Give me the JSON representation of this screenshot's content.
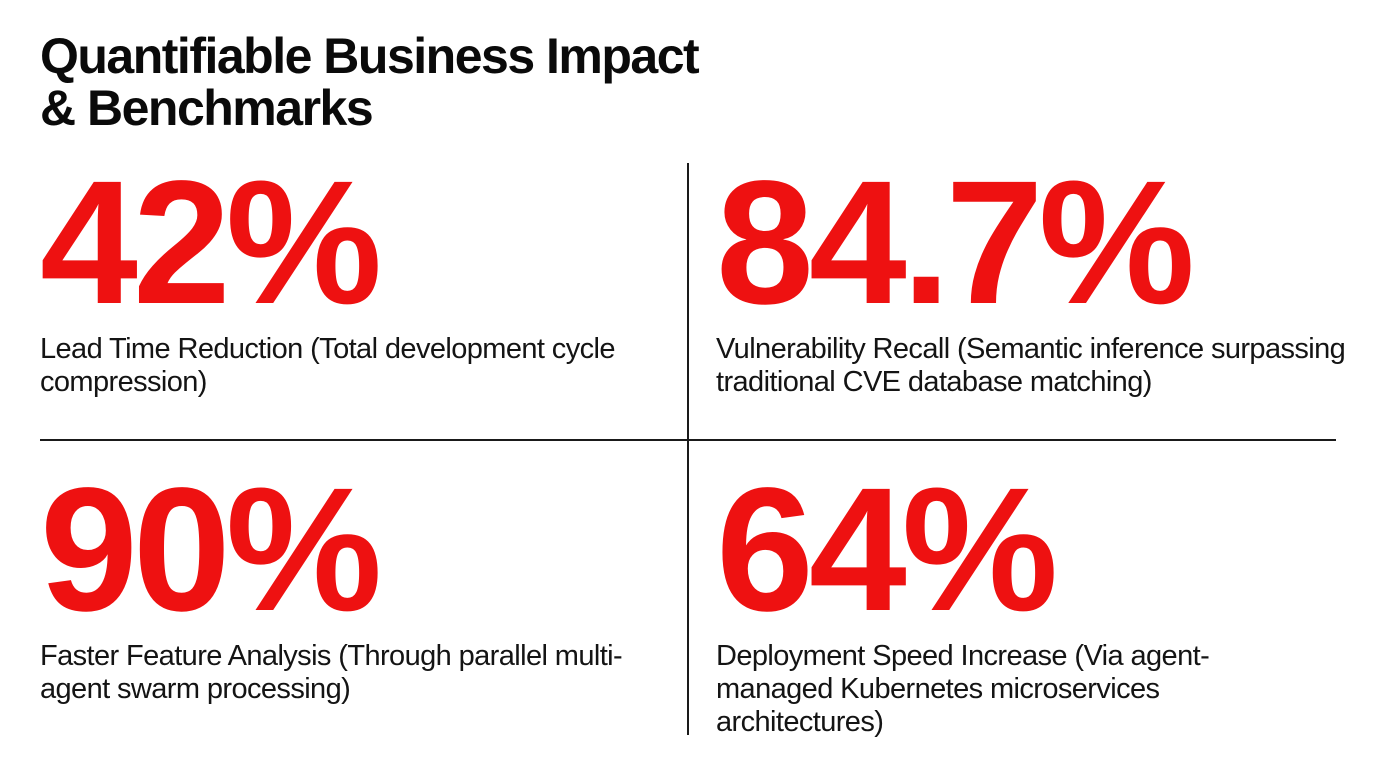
{
  "header": {
    "title_line1": "Quantifiable Business Impact",
    "title_line2": "& Benchmarks"
  },
  "metrics": [
    {
      "value": "42%",
      "description": "Lead Time Reduction (Total development cycle compression)"
    },
    {
      "value": "84.7%",
      "description": "Vulnerability Recall (Semantic inference surpassing traditional CVE database matching)"
    },
    {
      "value": "90%",
      "description": "Faster Feature Analysis (Through parallel multi-agent swarm processing)"
    },
    {
      "value": "64%",
      "description": "Deployment Speed Increase (Via agent-managed Kubernetes microservices architectures)"
    }
  ],
  "colors": {
    "accent": "#ee1111",
    "text": "#141414",
    "divider": "#1a1a1a",
    "background": "#ffffff"
  }
}
